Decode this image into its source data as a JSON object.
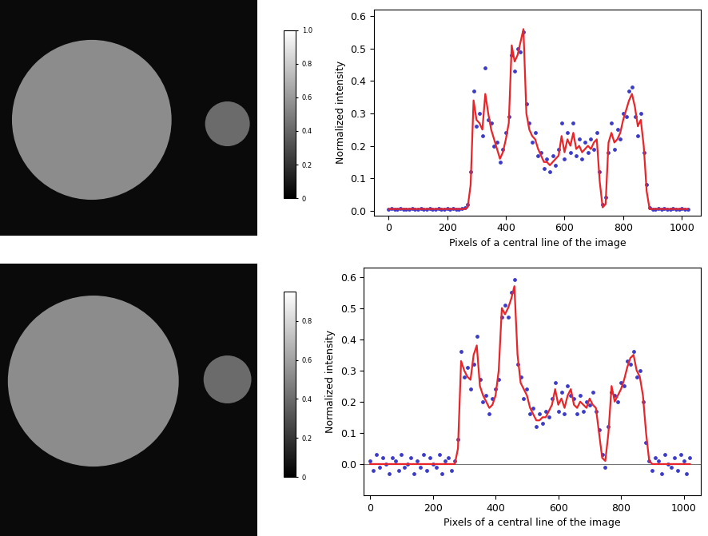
{
  "chart_data": [
    {
      "type": "image",
      "colorbar": {
        "range": [
          0,
          1.0
        ],
        "ticks": [
          0,
          0.2,
          0.4,
          0.6,
          0.8,
          1.0
        ]
      }
    },
    {
      "type": "mixed",
      "xlabel": "Pixels of a central line of the image",
      "ylabel": "Normalized intensity",
      "xlim": [
        -50,
        1065
      ],
      "xticks": [
        0,
        200,
        400,
        600,
        800,
        1000
      ],
      "ylim": [
        -0.015,
        0.62
      ],
      "yticks": [
        0.0,
        0.1,
        0.2,
        0.3,
        0.4,
        0.5,
        0.6
      ],
      "x": [
        0,
        10,
        20,
        30,
        40,
        50,
        60,
        70,
        80,
        90,
        100,
        110,
        120,
        130,
        140,
        150,
        160,
        170,
        180,
        190,
        200,
        210,
        220,
        230,
        240,
        250,
        260,
        270,
        280,
        290,
        300,
        310,
        320,
        330,
        340,
        350,
        360,
        370,
        380,
        390,
        400,
        410,
        420,
        430,
        440,
        450,
        460,
        470,
        480,
        490,
        500,
        510,
        520,
        530,
        540,
        550,
        560,
        570,
        580,
        590,
        600,
        610,
        620,
        630,
        640,
        650,
        660,
        670,
        680,
        690,
        700,
        710,
        720,
        730,
        740,
        750,
        760,
        770,
        780,
        790,
        800,
        810,
        820,
        830,
        840,
        850,
        860,
        870,
        880,
        890,
        900,
        910,
        920,
        930,
        940,
        950,
        960,
        970,
        980,
        990,
        1000,
        1010,
        1020
      ],
      "series": [
        {
          "type": "scatter",
          "color": "#3b3bc8",
          "marker": "dot",
          "values": [
            0.004,
            0.006,
            0.003,
            0.005,
            0.007,
            0.004,
            0.005,
            0.003,
            0.006,
            0.005,
            0.004,
            0.007,
            0.005,
            0.003,
            0.006,
            0.004,
            0.005,
            0.006,
            0.003,
            0.005,
            0.007,
            0.004,
            0.006,
            0.005,
            0.004,
            0.006,
            0.008,
            0.02,
            0.12,
            0.37,
            0.26,
            0.3,
            0.23,
            0.44,
            0.28,
            0.27,
            0.2,
            0.21,
            0.15,
            0.19,
            0.24,
            0.29,
            0.48,
            0.43,
            0.5,
            0.49,
            0.55,
            0.33,
            0.27,
            0.21,
            0.24,
            0.17,
            0.18,
            0.13,
            0.16,
            0.12,
            0.17,
            0.14,
            0.19,
            0.27,
            0.16,
            0.24,
            0.18,
            0.27,
            0.17,
            0.22,
            0.16,
            0.21,
            0.18,
            0.22,
            0.19,
            0.24,
            0.12,
            0.02,
            0.04,
            0.18,
            0.27,
            0.19,
            0.25,
            0.22,
            0.3,
            0.29,
            0.37,
            0.38,
            0.29,
            0.23,
            0.3,
            0.18,
            0.08,
            0.01,
            0.005,
            0.003,
            0.006,
            0.004,
            0.007,
            0.005,
            0.003,
            0.006,
            0.004,
            0.005,
            0.006,
            0.003,
            0.005
          ]
        },
        {
          "type": "line",
          "color": "#e8262a",
          "line_style": "solid",
          "values": [
            0.005,
            0.005,
            0.005,
            0.005,
            0.005,
            0.005,
            0.005,
            0.005,
            0.005,
            0.005,
            0.005,
            0.005,
            0.005,
            0.005,
            0.005,
            0.005,
            0.005,
            0.005,
            0.005,
            0.005,
            0.005,
            0.005,
            0.005,
            0.005,
            0.005,
            0.005,
            0.005,
            0.01,
            0.08,
            0.34,
            0.28,
            0.27,
            0.25,
            0.36,
            0.3,
            0.25,
            0.22,
            0.19,
            0.16,
            0.18,
            0.22,
            0.27,
            0.51,
            0.46,
            0.48,
            0.52,
            0.56,
            0.3,
            0.25,
            0.23,
            0.22,
            0.19,
            0.17,
            0.15,
            0.15,
            0.14,
            0.15,
            0.16,
            0.17,
            0.23,
            0.18,
            0.22,
            0.2,
            0.24,
            0.19,
            0.2,
            0.18,
            0.19,
            0.2,
            0.19,
            0.21,
            0.22,
            0.09,
            0.01,
            0.02,
            0.21,
            0.24,
            0.21,
            0.22,
            0.24,
            0.28,
            0.31,
            0.34,
            0.36,
            0.32,
            0.26,
            0.28,
            0.2,
            0.06,
            0.005,
            0.005,
            0.005,
            0.005,
            0.005,
            0.005,
            0.005,
            0.005,
            0.005,
            0.005,
            0.005,
            0.005,
            0.005,
            0.005
          ]
        }
      ]
    },
    {
      "type": "image",
      "colorbar": {
        "range": [
          0,
          0.95
        ],
        "ticks": [
          0,
          0.2,
          0.4,
          0.6,
          0.8
        ]
      }
    },
    {
      "type": "mixed",
      "xlabel": "Pixels of a central line of the image",
      "ylabel": "Normalized intensity",
      "xlim": [
        -20,
        1055
      ],
      "xticks": [
        0,
        200,
        400,
        600,
        800,
        1000
      ],
      "ylim": [
        -0.1,
        0.63
      ],
      "yticks": [
        0.0,
        0.1,
        0.2,
        0.3,
        0.4,
        0.5,
        0.6
      ],
      "baseline": 0,
      "x": [
        0,
        10,
        20,
        30,
        40,
        50,
        60,
        70,
        80,
        90,
        100,
        110,
        120,
        130,
        140,
        150,
        160,
        170,
        180,
        190,
        200,
        210,
        220,
        230,
        240,
        250,
        260,
        270,
        280,
        290,
        300,
        310,
        320,
        330,
        340,
        350,
        360,
        370,
        380,
        390,
        400,
        410,
        420,
        430,
        440,
        450,
        460,
        470,
        480,
        490,
        500,
        510,
        520,
        530,
        540,
        550,
        560,
        570,
        580,
        590,
        600,
        610,
        620,
        630,
        640,
        650,
        660,
        670,
        680,
        690,
        700,
        710,
        720,
        730,
        740,
        750,
        760,
        770,
        780,
        790,
        800,
        810,
        820,
        830,
        840,
        850,
        860,
        870,
        880,
        890,
        900,
        910,
        920,
        930,
        940,
        950,
        960,
        970,
        980,
        990,
        1000,
        1010,
        1020
      ],
      "series": [
        {
          "type": "scatter",
          "color": "#3b3bc8",
          "marker": "dot",
          "values": [
            0.01,
            -0.02,
            0.03,
            -0.01,
            0.02,
            0.0,
            -0.03,
            0.02,
            0.01,
            -0.02,
            0.03,
            -0.01,
            0.0,
            0.02,
            -0.03,
            0.01,
            -0.01,
            0.03,
            -0.02,
            0.02,
            0.0,
            -0.01,
            0.03,
            -0.03,
            0.01,
            0.02,
            -0.02,
            0.01,
            0.08,
            0.36,
            0.28,
            0.31,
            0.24,
            0.32,
            0.41,
            0.27,
            0.2,
            0.22,
            0.16,
            0.21,
            0.24,
            0.27,
            0.47,
            0.51,
            0.47,
            0.55,
            0.59,
            0.32,
            0.28,
            0.21,
            0.24,
            0.16,
            0.18,
            0.12,
            0.16,
            0.13,
            0.17,
            0.15,
            0.21,
            0.26,
            0.17,
            0.23,
            0.16,
            0.25,
            0.22,
            0.21,
            0.16,
            0.22,
            0.17,
            0.2,
            0.19,
            0.23,
            0.17,
            0.11,
            0.03,
            -0.01,
            0.12,
            0.23,
            0.22,
            0.2,
            0.26,
            0.25,
            0.33,
            0.32,
            0.36,
            0.28,
            0.3,
            0.2,
            0.07,
            0.01,
            -0.02,
            0.02,
            0.01,
            -0.03,
            0.03,
            0.0,
            -0.01,
            0.02,
            -0.02,
            0.03,
            0.01,
            -0.03,
            0.02
          ]
        },
        {
          "type": "line",
          "color": "#e8262a",
          "line_style": "solid",
          "values": [
            0.0,
            0.0,
            0.0,
            0.0,
            0.0,
            0.0,
            0.0,
            0.0,
            0.0,
            0.0,
            0.0,
            0.0,
            0.0,
            0.0,
            0.0,
            0.0,
            0.0,
            0.0,
            0.0,
            0.0,
            0.0,
            0.0,
            0.0,
            0.0,
            0.0,
            0.0,
            0.0,
            0.0,
            0.05,
            0.33,
            0.3,
            0.28,
            0.27,
            0.35,
            0.38,
            0.25,
            0.22,
            0.2,
            0.18,
            0.19,
            0.22,
            0.3,
            0.5,
            0.48,
            0.5,
            0.53,
            0.57,
            0.35,
            0.26,
            0.24,
            0.22,
            0.18,
            0.16,
            0.14,
            0.14,
            0.15,
            0.15,
            0.17,
            0.19,
            0.24,
            0.19,
            0.21,
            0.18,
            0.22,
            0.24,
            0.19,
            0.18,
            0.2,
            0.19,
            0.18,
            0.21,
            0.19,
            0.18,
            0.1,
            0.02,
            0.01,
            0.1,
            0.25,
            0.2,
            0.22,
            0.24,
            0.27,
            0.31,
            0.34,
            0.35,
            0.3,
            0.28,
            0.22,
            0.1,
            0.01,
            0.0,
            0.0,
            0.0,
            0.0,
            0.0,
            0.0,
            0.0,
            0.0,
            0.0,
            0.0,
            0.0,
            0.0,
            0.0
          ]
        }
      ]
    }
  ]
}
